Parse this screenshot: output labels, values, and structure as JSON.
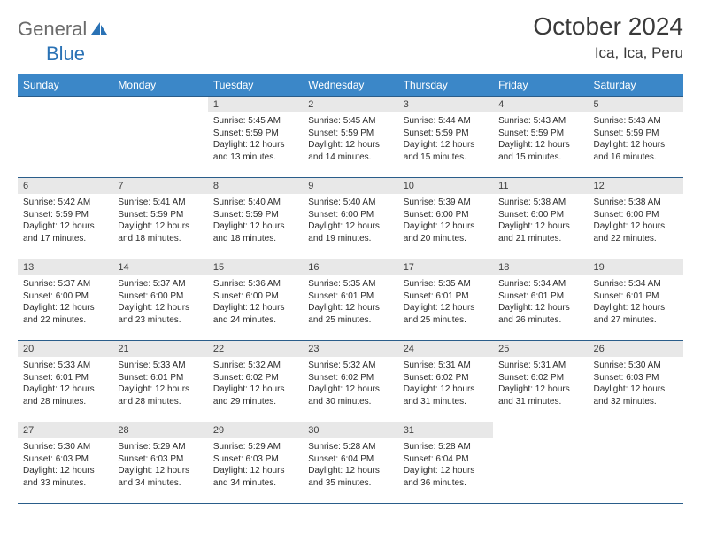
{
  "logo": {
    "general": "General",
    "blue": "Blue"
  },
  "header": {
    "month_title": "October 2024",
    "location": "Ica, Ica, Peru"
  },
  "colors": {
    "header_bg": "#3b87c8",
    "header_fg": "#ffffff",
    "border": "#2a5d8a",
    "daynum_bg": "#e8e8e8",
    "logo_gray": "#6b6b6b",
    "logo_blue": "#2a72b5"
  },
  "day_names": [
    "Sunday",
    "Monday",
    "Tuesday",
    "Wednesday",
    "Thursday",
    "Friday",
    "Saturday"
  ],
  "layout": {
    "first_weekday": 2,
    "days_in_month": 31
  },
  "days": {
    "1": {
      "sunrise": "5:45 AM",
      "sunset": "5:59 PM",
      "daylight": "12 hours and 13 minutes."
    },
    "2": {
      "sunrise": "5:45 AM",
      "sunset": "5:59 PM",
      "daylight": "12 hours and 14 minutes."
    },
    "3": {
      "sunrise": "5:44 AM",
      "sunset": "5:59 PM",
      "daylight": "12 hours and 15 minutes."
    },
    "4": {
      "sunrise": "5:43 AM",
      "sunset": "5:59 PM",
      "daylight": "12 hours and 15 minutes."
    },
    "5": {
      "sunrise": "5:43 AM",
      "sunset": "5:59 PM",
      "daylight": "12 hours and 16 minutes."
    },
    "6": {
      "sunrise": "5:42 AM",
      "sunset": "5:59 PM",
      "daylight": "12 hours and 17 minutes."
    },
    "7": {
      "sunrise": "5:41 AM",
      "sunset": "5:59 PM",
      "daylight": "12 hours and 18 minutes."
    },
    "8": {
      "sunrise": "5:40 AM",
      "sunset": "5:59 PM",
      "daylight": "12 hours and 18 minutes."
    },
    "9": {
      "sunrise": "5:40 AM",
      "sunset": "6:00 PM",
      "daylight": "12 hours and 19 minutes."
    },
    "10": {
      "sunrise": "5:39 AM",
      "sunset": "6:00 PM",
      "daylight": "12 hours and 20 minutes."
    },
    "11": {
      "sunrise": "5:38 AM",
      "sunset": "6:00 PM",
      "daylight": "12 hours and 21 minutes."
    },
    "12": {
      "sunrise": "5:38 AM",
      "sunset": "6:00 PM",
      "daylight": "12 hours and 22 minutes."
    },
    "13": {
      "sunrise": "5:37 AM",
      "sunset": "6:00 PM",
      "daylight": "12 hours and 22 minutes."
    },
    "14": {
      "sunrise": "5:37 AM",
      "sunset": "6:00 PM",
      "daylight": "12 hours and 23 minutes."
    },
    "15": {
      "sunrise": "5:36 AM",
      "sunset": "6:00 PM",
      "daylight": "12 hours and 24 minutes."
    },
    "16": {
      "sunrise": "5:35 AM",
      "sunset": "6:01 PM",
      "daylight": "12 hours and 25 minutes."
    },
    "17": {
      "sunrise": "5:35 AM",
      "sunset": "6:01 PM",
      "daylight": "12 hours and 25 minutes."
    },
    "18": {
      "sunrise": "5:34 AM",
      "sunset": "6:01 PM",
      "daylight": "12 hours and 26 minutes."
    },
    "19": {
      "sunrise": "5:34 AM",
      "sunset": "6:01 PM",
      "daylight": "12 hours and 27 minutes."
    },
    "20": {
      "sunrise": "5:33 AM",
      "sunset": "6:01 PM",
      "daylight": "12 hours and 28 minutes."
    },
    "21": {
      "sunrise": "5:33 AM",
      "sunset": "6:01 PM",
      "daylight": "12 hours and 28 minutes."
    },
    "22": {
      "sunrise": "5:32 AM",
      "sunset": "6:02 PM",
      "daylight": "12 hours and 29 minutes."
    },
    "23": {
      "sunrise": "5:32 AM",
      "sunset": "6:02 PM",
      "daylight": "12 hours and 30 minutes."
    },
    "24": {
      "sunrise": "5:31 AM",
      "sunset": "6:02 PM",
      "daylight": "12 hours and 31 minutes."
    },
    "25": {
      "sunrise": "5:31 AM",
      "sunset": "6:02 PM",
      "daylight": "12 hours and 31 minutes."
    },
    "26": {
      "sunrise": "5:30 AM",
      "sunset": "6:03 PM",
      "daylight": "12 hours and 32 minutes."
    },
    "27": {
      "sunrise": "5:30 AM",
      "sunset": "6:03 PM",
      "daylight": "12 hours and 33 minutes."
    },
    "28": {
      "sunrise": "5:29 AM",
      "sunset": "6:03 PM",
      "daylight": "12 hours and 34 minutes."
    },
    "29": {
      "sunrise": "5:29 AM",
      "sunset": "6:03 PM",
      "daylight": "12 hours and 34 minutes."
    },
    "30": {
      "sunrise": "5:28 AM",
      "sunset": "6:04 PM",
      "daylight": "12 hours and 35 minutes."
    },
    "31": {
      "sunrise": "5:28 AM",
      "sunset": "6:04 PM",
      "daylight": "12 hours and 36 minutes."
    }
  },
  "labels": {
    "sunrise": "Sunrise:",
    "sunset": "Sunset:",
    "daylight": "Daylight:"
  }
}
